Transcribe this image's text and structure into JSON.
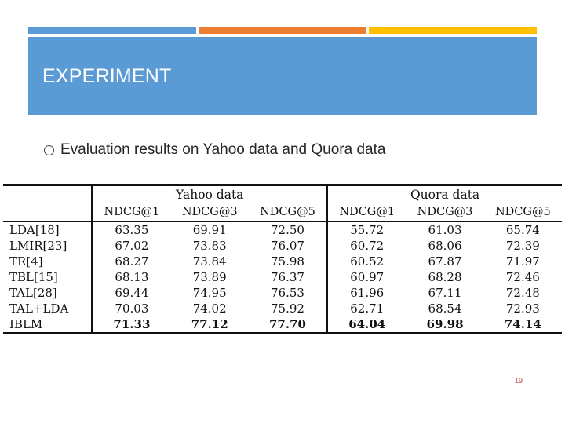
{
  "colors": {
    "accent_blue": "#5b9bd5",
    "accent_orange": "#ed7d31",
    "accent_gold": "#ffc000",
    "title_text": "#ffffff",
    "page_number": "#c0504d"
  },
  "header": {
    "title": "EXPERIMENT"
  },
  "bullet": {
    "icon": "hollow-circle-bullet",
    "text": "Evaluation results on Yahoo data and Quora data"
  },
  "table": {
    "groups": [
      "Yahoo data",
      "Quora data"
    ],
    "metrics": [
      "NDCG@1",
      "NDCG@3",
      "NDCG@5",
      "NDCG@1",
      "NDCG@3",
      "NDCG@5"
    ],
    "rows": [
      {
        "method": "LDA[18]",
        "values": [
          "63.35",
          "69.91",
          "72.50",
          "55.72",
          "61.03",
          "65.74"
        ]
      },
      {
        "method": "LMIR[23]",
        "values": [
          "67.02",
          "73.83",
          "76.07",
          "60.72",
          "68.06",
          "72.39"
        ]
      },
      {
        "method": "TR[4]",
        "values": [
          "68.27",
          "73.84",
          "75.98",
          "60.52",
          "67.87",
          "71.97"
        ]
      },
      {
        "method": "TBL[15]",
        "values": [
          "68.13",
          "73.89",
          "76.37",
          "60.97",
          "68.28",
          "72.46"
        ]
      },
      {
        "method": "TAL[28]",
        "values": [
          "69.44",
          "74.95",
          "76.53",
          "61.96",
          "67.11",
          "72.48"
        ]
      },
      {
        "method": "TAL+LDA",
        "values": [
          "70.03",
          "74.02",
          "75.92",
          "62.71",
          "68.54",
          "72.93"
        ]
      },
      {
        "method": "IBLM",
        "values": [
          "71.33",
          "77.12",
          "77.70",
          "64.04",
          "69.98",
          "74.14"
        ]
      }
    ]
  },
  "footer": {
    "page_number": "19"
  }
}
